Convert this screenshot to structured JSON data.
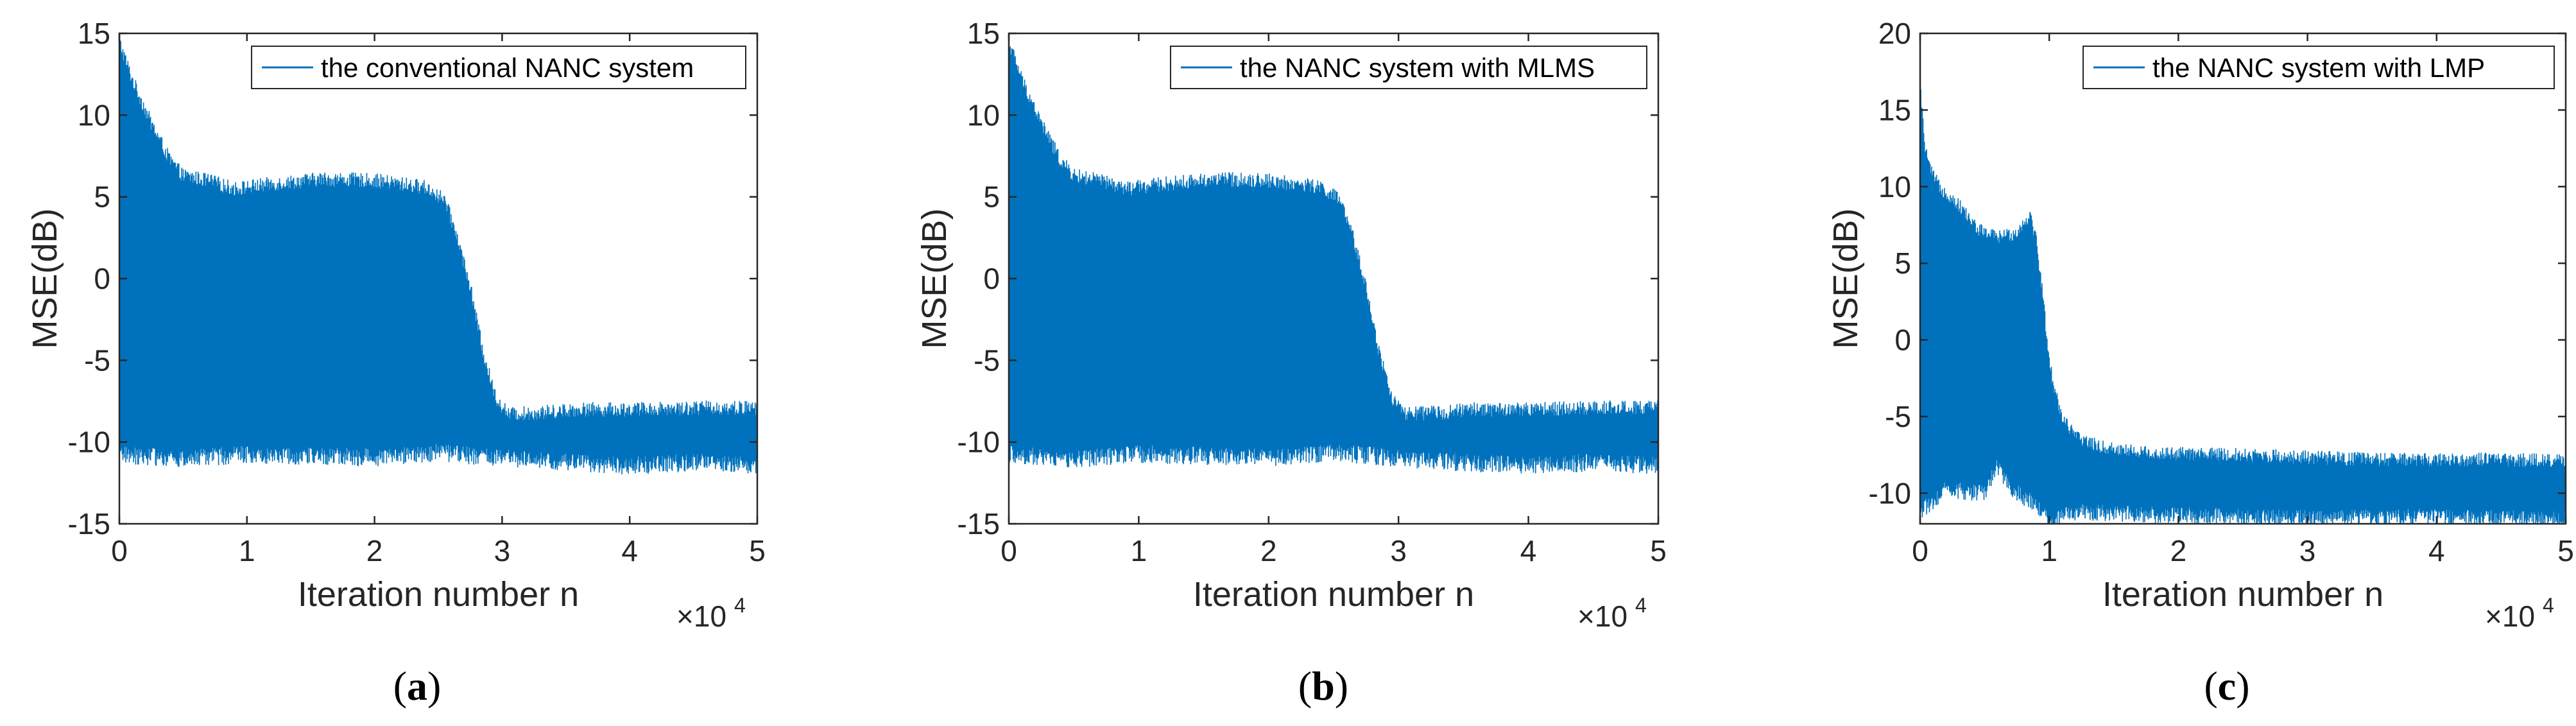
{
  "chart_data": [
    {
      "type": "area",
      "panel_label": "a",
      "xlabel": "Iteration number n",
      "ylabel": "MSE(dB)",
      "x_multiplier": "×10",
      "x_multiplier_exp": "4",
      "xlim": [
        0,
        5
      ],
      "ylim": [
        -15,
        15
      ],
      "xticks": [
        0,
        1,
        2,
        3,
        4,
        5
      ],
      "yticks": [
        -15,
        -10,
        -5,
        0,
        5,
        10,
        15
      ],
      "legend": "the conventional NANC system",
      "legend_position": "top-right",
      "color": "#0072bd",
      "series": [
        {
          "name": "upper envelope",
          "x": [
            0,
            0.1,
            0.25,
            0.4,
            0.5,
            0.7,
            0.9,
            1.2,
            1.6,
            2.0,
            2.4,
            2.55,
            2.65,
            2.75,
            2.85,
            2.95,
            3.05,
            3.3,
            3.6,
            4.0,
            4.5,
            5.0
          ],
          "values": [
            14.5,
            12.2,
            9.5,
            7.2,
            6.3,
            6.0,
            5.5,
            5.8,
            6.1,
            6.0,
            5.6,
            4.8,
            2.5,
            -0.5,
            -4.5,
            -7.3,
            -8.3,
            -8.2,
            -8.0,
            -8.0,
            -7.9,
            -7.9
          ]
        },
        {
          "name": "lower envelope",
          "x": [
            0,
            0.5,
            1.0,
            1.5,
            2.0,
            2.5,
            2.8,
            3.1,
            3.5,
            4.0,
            4.5,
            5.0
          ],
          "values": [
            -10.5,
            -10.8,
            -10.5,
            -10.6,
            -10.7,
            -10.4,
            -10.6,
            -10.8,
            -11.0,
            -11.2,
            -11.0,
            -11.2
          ]
        }
      ]
    },
    {
      "type": "area",
      "panel_label": "b",
      "xlabel": "Iteration number n",
      "ylabel": "MSE(dB)",
      "x_multiplier": "×10",
      "x_multiplier_exp": "4",
      "xlim": [
        0,
        5
      ],
      "ylim": [
        -15,
        15
      ],
      "xticks": [
        0,
        1,
        2,
        3,
        4,
        5
      ],
      "yticks": [
        -15,
        -10,
        -5,
        0,
        5,
        10,
        15
      ],
      "legend": "the NANC system with MLMS",
      "legend_position": "top-right",
      "color": "#0072bd",
      "series": [
        {
          "name": "upper envelope",
          "x": [
            0,
            0.1,
            0.25,
            0.4,
            0.5,
            0.7,
            0.9,
            1.2,
            1.6,
            2.0,
            2.4,
            2.55,
            2.65,
            2.75,
            2.85,
            2.95,
            3.05,
            3.3,
            3.6,
            4.0,
            4.5,
            5.0
          ],
          "values": [
            14.5,
            12.2,
            9.5,
            7.2,
            6.3,
            6.0,
            5.5,
            5.8,
            6.1,
            6.0,
            5.6,
            4.8,
            2.5,
            -0.5,
            -4.5,
            -7.3,
            -8.3,
            -8.2,
            -8.0,
            -8.0,
            -7.9,
            -7.9
          ]
        },
        {
          "name": "lower envelope",
          "x": [
            0,
            0.5,
            1.0,
            1.5,
            2.0,
            2.5,
            2.8,
            3.1,
            3.5,
            4.0,
            4.5,
            5.0
          ],
          "values": [
            -10.5,
            -10.8,
            -10.5,
            -10.6,
            -10.7,
            -10.4,
            -10.6,
            -10.8,
            -11.0,
            -11.2,
            -11.0,
            -11.2
          ]
        }
      ]
    },
    {
      "type": "area",
      "panel_label": "c",
      "xlabel": "Iteration number n",
      "ylabel": "MSE(dB)",
      "x_multiplier": "×10",
      "x_multiplier_exp": "4",
      "xlim": [
        0,
        5
      ],
      "ylim": [
        -12,
        20
      ],
      "xticks": [
        0,
        1,
        2,
        3,
        4,
        5
      ],
      "yticks": [
        -10,
        -5,
        0,
        5,
        10,
        15,
        20
      ],
      "legend": "the NANC system with LMP",
      "legend_position": "top-right",
      "color": "#0072bd",
      "series": [
        {
          "name": "upper envelope",
          "x": [
            0,
            0.03,
            0.08,
            0.15,
            0.3,
            0.45,
            0.6,
            0.75,
            0.85,
            0.9,
            0.95,
            1.0,
            1.05,
            1.1,
            1.2,
            1.4,
            1.8,
            2.5,
            3.5,
            4.5,
            5.0
          ],
          "values": [
            17.0,
            13.0,
            11.0,
            10.0,
            8.8,
            7.2,
            6.7,
            7.0,
            8.2,
            6.5,
            3.0,
            -1.5,
            -3.5,
            -5.0,
            -6.3,
            -7.0,
            -7.4,
            -7.5,
            -7.8,
            -7.8,
            -7.9
          ]
        },
        {
          "name": "lower envelope",
          "x": [
            0,
            0.2,
            0.5,
            0.6,
            0.7,
            0.9,
            1.0,
            1.2,
            2.0,
            3.0,
            4.0,
            5.0
          ],
          "values": [
            -11.0,
            -9.5,
            -9.8,
            -8.0,
            -9.5,
            -10.5,
            -11.5,
            -11.0,
            -11.2,
            -11.4,
            -11.3,
            -11.5
          ]
        }
      ]
    }
  ]
}
